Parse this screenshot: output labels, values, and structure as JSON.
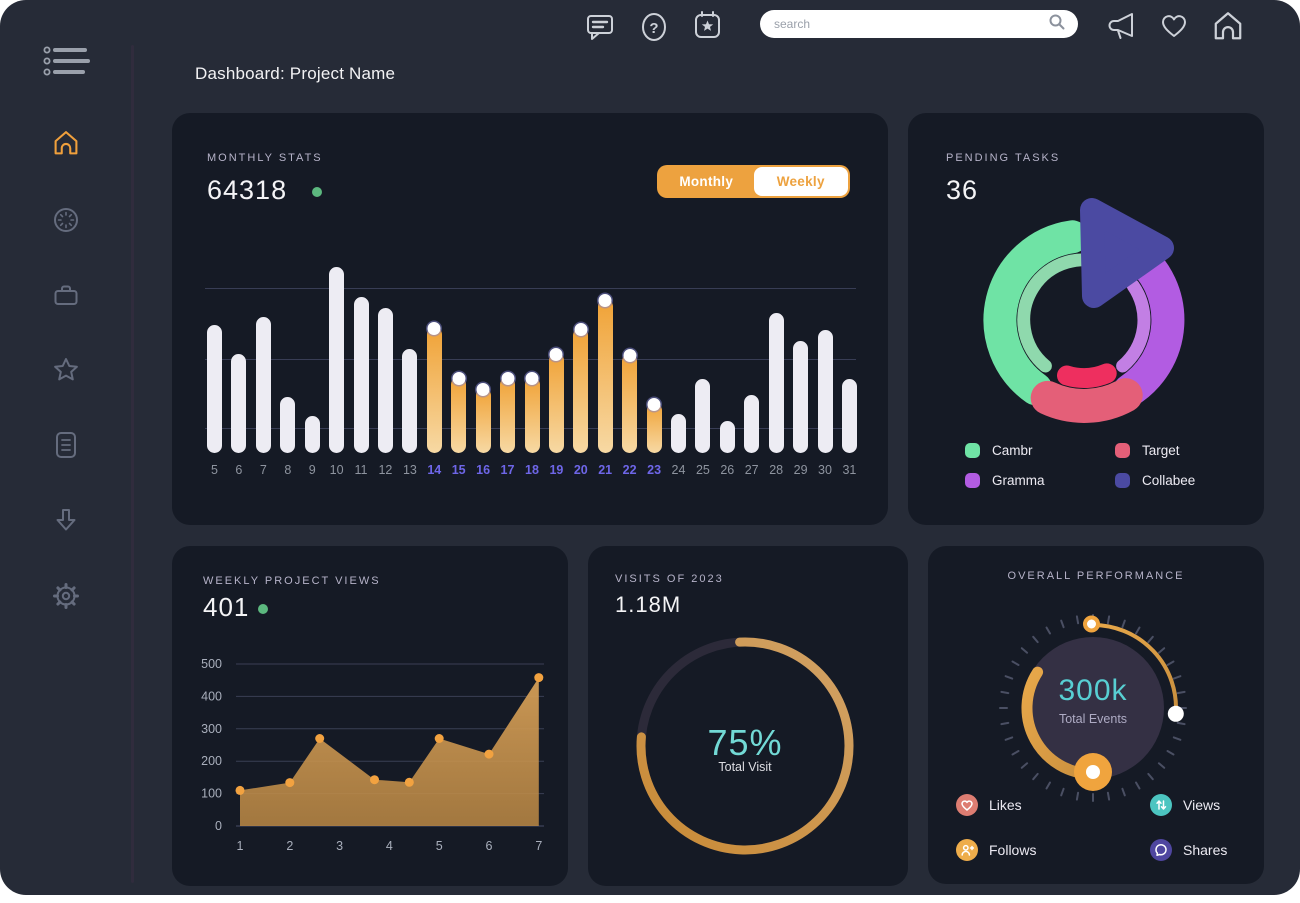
{
  "colors": {
    "app_bg": "#262b37",
    "card_bg": "#151a25",
    "accent_orange": "#f0a23c",
    "teal": "#5ad0d4",
    "green_dot": "#5cb87f",
    "label": "#b6b3c9"
  },
  "topbar": {
    "search_placeholder": "search"
  },
  "header": {
    "title": "Dashboard: Project Name"
  },
  "cards": {
    "monthly_stats": {
      "label": "MONTHLY STATS",
      "value": "64318",
      "toggle": {
        "monthly": "Monthly",
        "weekly": "Weekly",
        "active": "Monthly"
      },
      "chart_data": {
        "type": "bar",
        "categories": [
          5,
          6,
          7,
          8,
          9,
          10,
          11,
          12,
          13,
          14,
          15,
          16,
          17,
          18,
          19,
          20,
          21,
          22,
          23,
          24,
          25,
          26,
          27,
          28,
          29,
          30,
          31
        ],
        "values": [
          69,
          53,
          73,
          30,
          20,
          100,
          84,
          78,
          56,
          68,
          41,
          35,
          41,
          41,
          54,
          67,
          83,
          53,
          27,
          21,
          40,
          17,
          31,
          75,
          60,
          66,
          40
        ],
        "highlight_range": [
          14,
          23
        ],
        "bar_color": "#edecf3",
        "highlight_gradient": [
          "#f0a236",
          "#f7d9a4"
        ],
        "xlabel_color": "#8e949f",
        "xlabel_highlight_color": "#6e66e8",
        "grid": "on",
        "ylim": [
          0,
          100
        ]
      }
    },
    "pending_tasks": {
      "label": "PENDING TASKS",
      "value": "36",
      "chart_data": {
        "type": "donut",
        "segments": [
          {
            "name": "Cambr",
            "color": "#6fe3a5",
            "ring": "outer",
            "start": 98,
            "end": 235
          },
          {
            "name": "Cambr-inner",
            "color": "#8fd9ad",
            "ring": "inner",
            "start": 65,
            "end": 230
          },
          {
            "name": "Gramma",
            "color": "#b25ce2",
            "ring": "outer",
            "start": 303,
            "end": 410
          },
          {
            "name": "Gramma-inner",
            "color": "#c27fe4",
            "ring": "inner",
            "start": 310,
            "end": 395
          },
          {
            "name": "Target",
            "color": "#e45f78",
            "ring": "pink",
            "start": 245,
            "end": 299
          },
          {
            "name": "Target-inner",
            "color": "#ee2f5f",
            "ring": "red",
            "start": 253,
            "end": 293
          },
          {
            "name": "Collabee",
            "color": "#4b4aa2",
            "shape": "triangle"
          }
        ]
      },
      "legend": [
        {
          "label": "Cambr",
          "color": "#6fe3a5"
        },
        {
          "label": "Target",
          "color": "#e45f78"
        },
        {
          "label": "Gramma",
          "color": "#b25ce2"
        },
        {
          "label": "Collabee",
          "color": "#4b4aa2"
        }
      ]
    },
    "weekly_views": {
      "label": "WEEKLY PROJECT VIEWS",
      "value": "401",
      "chart_data": {
        "type": "area",
        "x": [
          1,
          2,
          2.6,
          3.7,
          4.4,
          5,
          6,
          7
        ],
        "values": [
          110,
          134,
          270,
          143,
          135,
          270,
          222,
          458
        ],
        "yticks": [
          0,
          100,
          200,
          300,
          400,
          500
        ],
        "xticks": [
          1,
          2,
          3,
          4,
          5,
          6,
          7
        ],
        "ylim": [
          0,
          500
        ],
        "fill_gradient": [
          "#d49e57",
          "#bb8844"
        ],
        "dot_color": "#f2a240",
        "grid": "on"
      }
    },
    "visits": {
      "label": "VISITS OF 2023",
      "value": "1.18M",
      "chart_data": {
        "type": "radial-progress",
        "percent": 75,
        "center_label": "75%",
        "center_sublabel": "Total Visit",
        "arc_gradient": [
          "#d1a266",
          "#c98a35"
        ],
        "track_color": "#2c2a39"
      }
    },
    "performance": {
      "label": "OVERALL PERFORMANCE",
      "value": "300k",
      "sublabel": "Total Events",
      "chart_data": {
        "type": "gauge",
        "center_value": "300k",
        "center_sublabel": "Total Events",
        "dial_color": "#343044",
        "tick_color": "#4a4f63",
        "arc_gradient": [
          "#e8a84a",
          "#c98f3e"
        ],
        "knob_color": "#f0a43e"
      },
      "legend": [
        {
          "label": "Likes",
          "color": "#dd7d72",
          "icon": "heart-icon"
        },
        {
          "label": "Views",
          "color": "#4cc5c1",
          "icon": "arrows-up-down-icon"
        },
        {
          "label": "Follows",
          "color": "#eead4b",
          "icon": "person-plus-icon"
        },
        {
          "label": "Shares",
          "color": "#4f46a0",
          "icon": "chat-bubble-icon"
        }
      ]
    }
  }
}
